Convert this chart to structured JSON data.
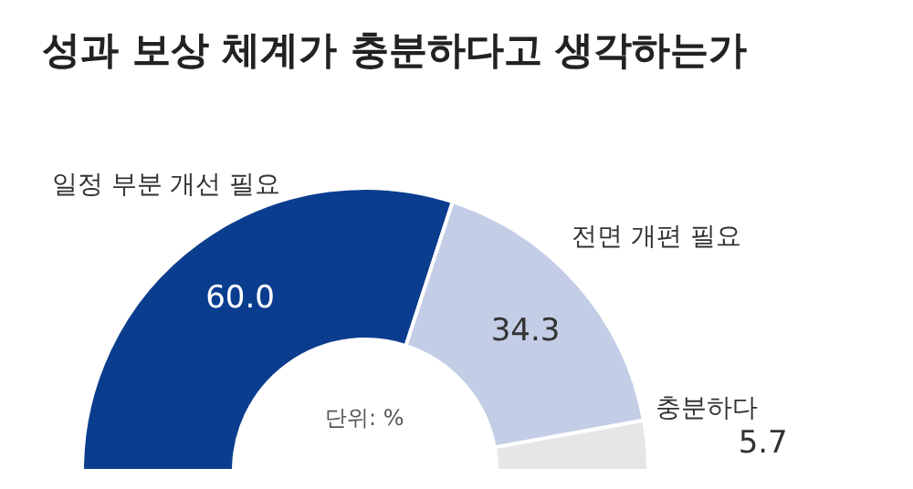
{
  "chart_data": {
    "type": "donut",
    "title": "성과 보상 체계가 충분하다고 생각하는가",
    "categories": [
      "일정 부분 개선 필요",
      "전면 개편 필요",
      "충분하다"
    ],
    "values": [
      60.0,
      34.3,
      5.7
    ],
    "colors": [
      "#0b3d8f",
      "#c3cde6",
      "#e6e6e6"
    ],
    "value_labels": [
      "60.0",
      "34.3",
      "5.7"
    ],
    "annotations": [
      "단위: %"
    ]
  }
}
